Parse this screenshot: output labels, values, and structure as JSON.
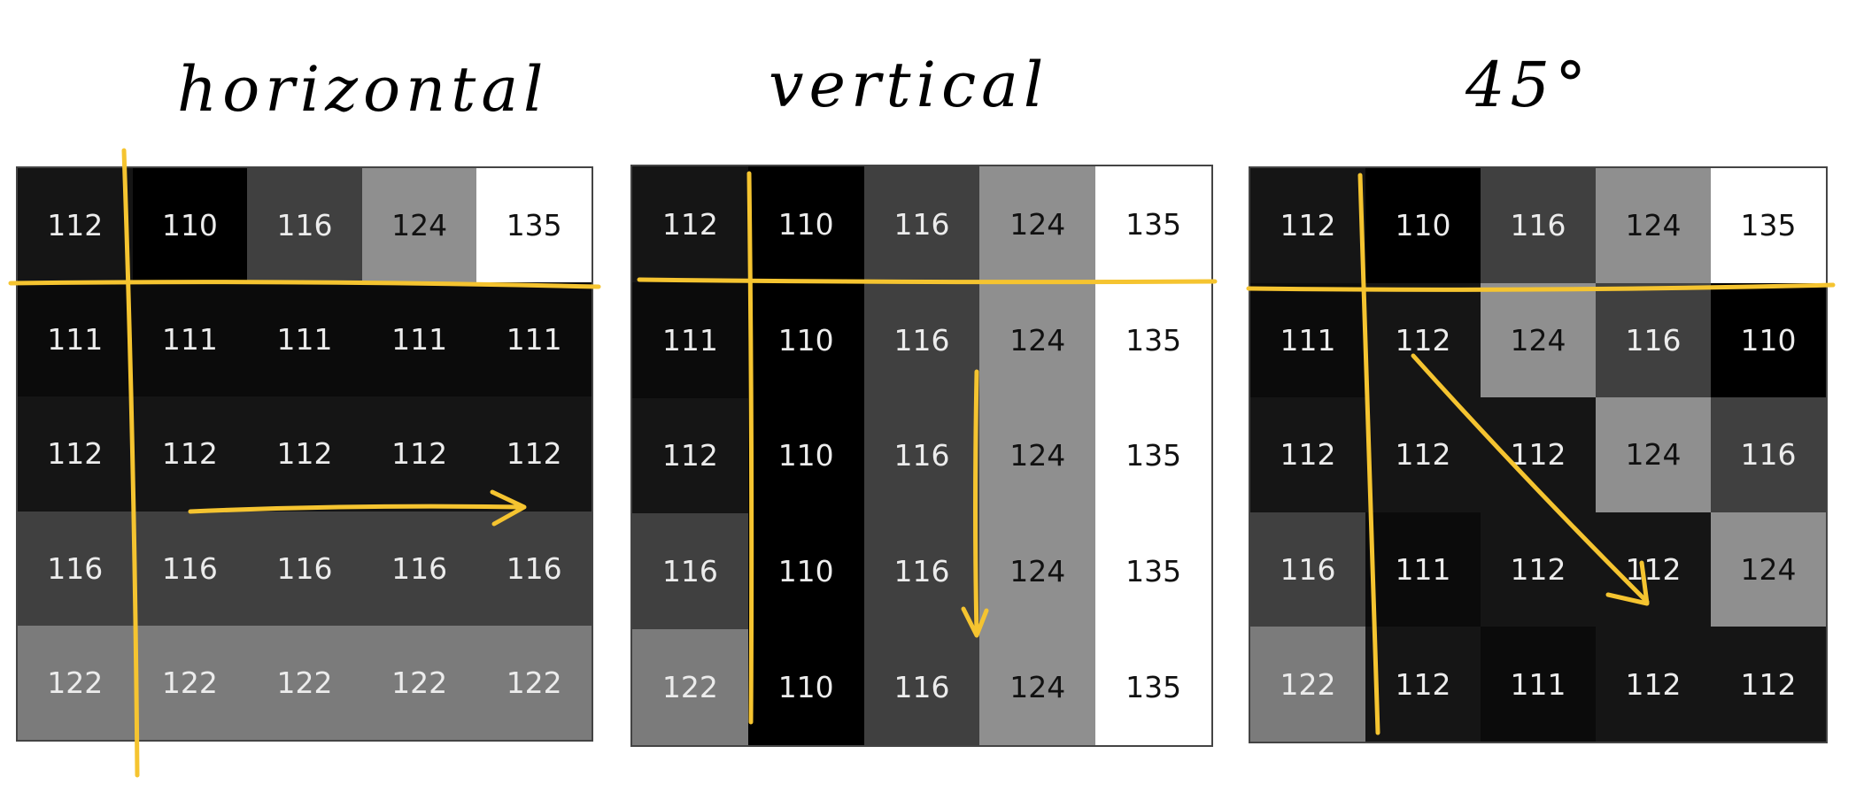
{
  "panels": [
    {
      "id": "horizontal",
      "title": "horizontal",
      "grid": [
        [
          112,
          110,
          116,
          124,
          135
        ],
        [
          111,
          111,
          111,
          111,
          111
        ],
        [
          112,
          112,
          112,
          112,
          112
        ],
        [
          116,
          116,
          116,
          116,
          116
        ],
        [
          122,
          122,
          122,
          122,
          122
        ]
      ]
    },
    {
      "id": "vertical",
      "title": "vertical",
      "grid": [
        [
          112,
          110,
          116,
          124,
          135
        ],
        [
          111,
          110,
          116,
          124,
          135
        ],
        [
          112,
          110,
          116,
          124,
          135
        ],
        [
          116,
          110,
          116,
          124,
          135
        ],
        [
          122,
          110,
          116,
          124,
          135
        ]
      ]
    },
    {
      "id": "diagonal-45",
      "title": "45°",
      "grid": [
        [
          112,
          110,
          116,
          124,
          135
        ],
        [
          111,
          112,
          124,
          116,
          110
        ],
        [
          112,
          112,
          112,
          124,
          116
        ],
        [
          116,
          111,
          112,
          112,
          124
        ],
        [
          122,
          112,
          111,
          112,
          112
        ]
      ]
    }
  ],
  "colors": {
    "annotation": "#f5c430",
    "value_scale": {
      "110": "#000000",
      "111": "#0b0b0b",
      "112": "#151515",
      "116": "#404040",
      "122": "#7b7b7b",
      "124": "#8f8f8f",
      "135": "#ffffff"
    }
  }
}
